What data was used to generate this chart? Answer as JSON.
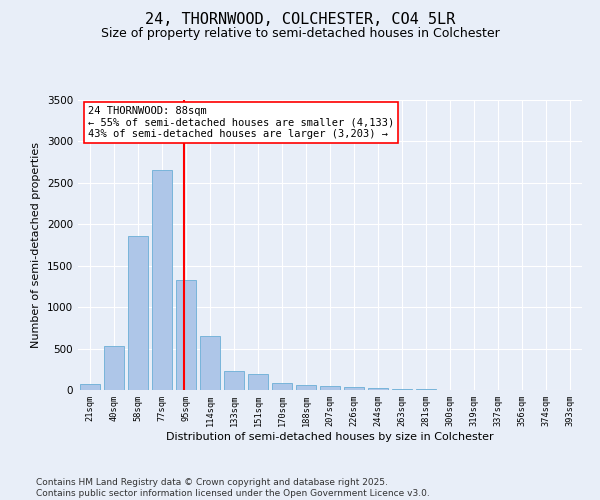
{
  "title": "24, THORNWOOD, COLCHESTER, CO4 5LR",
  "subtitle": "Size of property relative to semi-detached houses in Colchester",
  "xlabel": "Distribution of semi-detached houses by size in Colchester",
  "ylabel": "Number of semi-detached properties",
  "categories": [
    "21sqm",
    "40sqm",
    "58sqm",
    "77sqm",
    "95sqm",
    "114sqm",
    "133sqm",
    "151sqm",
    "170sqm",
    "188sqm",
    "207sqm",
    "226sqm",
    "244sqm",
    "263sqm",
    "281sqm",
    "300sqm",
    "319sqm",
    "337sqm",
    "356sqm",
    "374sqm",
    "393sqm"
  ],
  "values": [
    75,
    535,
    1855,
    2650,
    1325,
    650,
    230,
    195,
    90,
    55,
    45,
    35,
    25,
    10,
    10,
    5,
    5,
    0,
    0,
    0,
    0
  ],
  "bar_color": "#aec6e8",
  "bar_edge_color": "#6baed6",
  "vline_color": "red",
  "vline_x_index": 3.93,
  "annotation_text": "24 THORNWOOD: 88sqm\n← 55% of semi-detached houses are smaller (4,133)\n43% of semi-detached houses are larger (3,203) →",
  "annotation_box_color": "white",
  "annotation_box_edge_color": "red",
  "ylim": [
    0,
    3500
  ],
  "yticks": [
    0,
    500,
    1000,
    1500,
    2000,
    2500,
    3000,
    3500
  ],
  "bg_color": "#e8eef8",
  "grid_color": "white",
  "footnote": "Contains HM Land Registry data © Crown copyright and database right 2025.\nContains public sector information licensed under the Open Government Licence v3.0.",
  "title_fontsize": 11,
  "subtitle_fontsize": 9,
  "annotation_fontsize": 7.5,
  "footnote_fontsize": 6.5,
  "xlabel_fontsize": 8,
  "ylabel_fontsize": 8
}
